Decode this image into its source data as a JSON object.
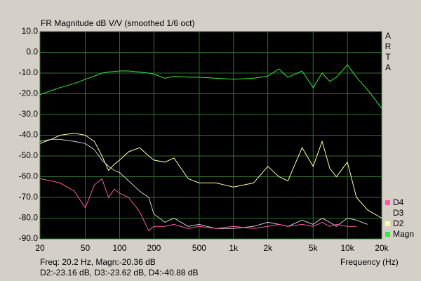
{
  "chart_data": {
    "type": "line",
    "title": "FR Magnitude dB V/V (smoothed 1/6 oct)",
    "side_label": [
      "A",
      "R",
      "T",
      "A"
    ],
    "x_label": "Frequency (Hz)",
    "readout": [
      "Freq: 20.2 Hz, Magn:-20.36 dB",
      "D2:-23.16 dB, D3:-23.62 dB, D4:-40.88 dB"
    ],
    "x_scale": "log",
    "grid": true,
    "x": [
      20,
      25,
      30,
      40,
      50,
      60,
      70,
      80,
      90,
      100,
      120,
      150,
      180,
      200,
      250,
      300,
      400,
      500,
      700,
      1000,
      1500,
      2000,
      2500,
      3000,
      4000,
      5000,
      6000,
      7000,
      8000,
      10000,
      12000,
      15000,
      20000
    ],
    "series": [
      {
        "name": "Magn",
        "color": "#33ee33",
        "values": [
          -20.4,
          -18.5,
          -17,
          -15,
          -13,
          -11.5,
          -10,
          -9.5,
          -9.2,
          -9,
          -9,
          -9.5,
          -10,
          -10.5,
          -12.5,
          -11.5,
          -12,
          -12,
          -12.5,
          -13,
          -12.5,
          -11.5,
          -8,
          -12,
          -9,
          -17,
          -10,
          -14,
          -12,
          -6,
          -12,
          -18,
          -27
        ]
      },
      {
        "name": "D2",
        "color": "#ffff99",
        "values": [
          -44,
          -42,
          -40,
          -39,
          -40,
          -43,
          -50,
          -57,
          -54,
          -52,
          -48,
          -46,
          -50,
          -52,
          -53,
          -51,
          -61,
          -63,
          -63,
          -65,
          -63,
          -55,
          -60,
          -62,
          -46,
          -55,
          -43,
          -56,
          -60,
          -53,
          -70,
          -76,
          -80
        ]
      },
      {
        "name": "D3",
        "color": "#cccccc",
        "values": [
          -43,
          -42,
          -42,
          -43,
          -44,
          -47,
          -52,
          -55,
          -57,
          -58,
          -62,
          -67,
          -70,
          -78,
          -82,
          -80,
          -84,
          -83,
          -85,
          -85,
          -84,
          -82,
          -83,
          -84,
          -81,
          -83,
          -80,
          -82,
          -84,
          -80,
          -81,
          -83,
          null
        ]
      },
      {
        "name": "D4",
        "color": "#ff55aa",
        "values": [
          -61,
          -62,
          -63,
          -67,
          -75,
          -64,
          -61,
          -70,
          -66,
          -68,
          -70,
          -77,
          -86,
          -84,
          -84,
          -83,
          -85,
          -84,
          -85,
          -84,
          -85,
          -84,
          -83,
          -84,
          -83,
          -84,
          -82,
          -84,
          -83,
          -84,
          -84,
          null,
          null
        ]
      }
    ],
    "xlim": [
      20,
      20000
    ],
    "ylim": [
      -90,
      10
    ],
    "xticks": [
      20,
      50,
      100,
      200,
      500,
      {
        "value": 1000,
        "label": "1k"
      },
      {
        "value": 2000,
        "label": "2k"
      },
      {
        "value": 5000,
        "label": "5k"
      },
      {
        "value": 10000,
        "label": "10k"
      },
      {
        "value": 20000,
        "label": "20k"
      }
    ],
    "yticks": [
      {
        "value": 10,
        "label": "10.0"
      },
      {
        "value": 0,
        "label": "0.0"
      },
      {
        "value": -10,
        "label": "-10.0"
      },
      {
        "value": -20,
        "label": "-20.0"
      },
      {
        "value": -30,
        "label": "-30.0"
      },
      {
        "value": -40,
        "label": "-40.0"
      },
      {
        "value": -50,
        "label": "-50.0"
      },
      {
        "value": -60,
        "label": "-60.0"
      },
      {
        "value": -70,
        "label": "-70.0"
      },
      {
        "value": -80,
        "label": "-80.0"
      },
      {
        "value": -90,
        "label": "-90.0"
      }
    ]
  }
}
